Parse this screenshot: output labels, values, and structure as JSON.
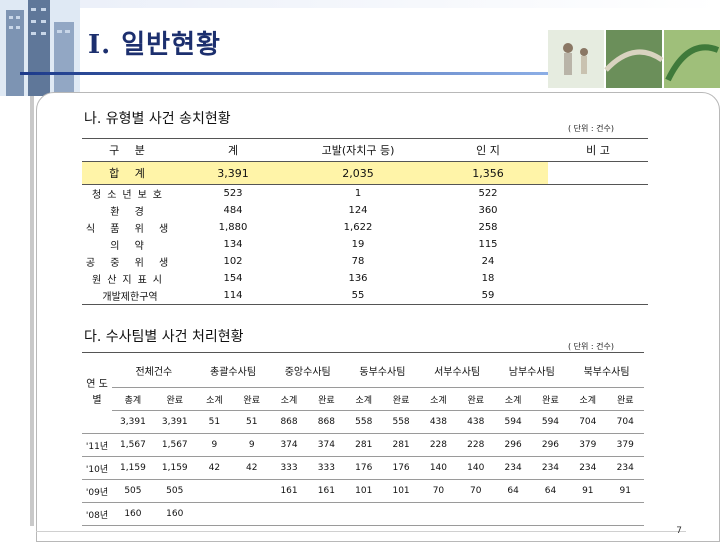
{
  "header": {
    "title": "I. 일반현황"
  },
  "section1": {
    "title": "나. 유형별 사건 송치현황",
    "unit": "( 단위 : 건수)",
    "columns": [
      "구 분",
      "계",
      "고발(자치구 등)",
      "인 지",
      "비 고"
    ],
    "total": {
      "label": "합 계",
      "total": "3,391",
      "complaint": "2,035",
      "cognizance": "1,356",
      "note": ""
    },
    "rows": [
      {
        "label": "청소년보호",
        "total": "523",
        "complaint": "1",
        "cognizance": "522",
        "note": ""
      },
      {
        "label": "환 경",
        "total": "484",
        "complaint": "124",
        "cognizance": "360",
        "note": ""
      },
      {
        "label": "식 품 위 생",
        "total": "1,880",
        "complaint": "1,622",
        "cognizance": "258",
        "note": ""
      },
      {
        "label": "의 약",
        "total": "134",
        "complaint": "19",
        "cognizance": "115",
        "note": ""
      },
      {
        "label": "공 중 위 생",
        "total": "102",
        "complaint": "78",
        "cognizance": "24",
        "note": ""
      },
      {
        "label": "원산지표시",
        "total": "154",
        "complaint": "136",
        "cognizance": "18",
        "note": ""
      },
      {
        "label": "개발제한구역",
        "total": "114",
        "complaint": "55",
        "cognizance": "59",
        "note": ""
      }
    ]
  },
  "section2": {
    "title": "다. 수사팀별 사건 처리현황",
    "unit": "( 단위 : 건수)",
    "year_col": "연 도 별",
    "groups": [
      "전체건수",
      "총괄수사팀",
      "중앙수사팀",
      "동부수사팀",
      "서부수사팀",
      "남부수사팀",
      "북부수사팀"
    ],
    "sub": [
      "총계",
      "완료",
      "소계",
      "완료",
      "소계",
      "완료",
      "소계",
      "완료",
      "소계",
      "완료",
      "소계",
      "완료",
      "소계",
      "완료"
    ],
    "rows": [
      {
        "year": "",
        "cells": [
          "3,391",
          "3,391",
          "51",
          "51",
          "868",
          "868",
          "558",
          "558",
          "438",
          "438",
          "594",
          "594",
          "704",
          "704"
        ]
      },
      {
        "year": "'11년",
        "cells": [
          "1,567",
          "1,567",
          "9",
          "9",
          "374",
          "374",
          "281",
          "281",
          "228",
          "228",
          "296",
          "296",
          "379",
          "379"
        ]
      },
      {
        "year": "'10년",
        "cells": [
          "1,159",
          "1,159",
          "42",
          "42",
          "333",
          "333",
          "176",
          "176",
          "140",
          "140",
          "234",
          "234",
          "234",
          "234"
        ]
      },
      {
        "year": "'09년",
        "cells": [
          "505",
          "505",
          "",
          "",
          "161",
          "161",
          "101",
          "101",
          "70",
          "70",
          "64",
          "64",
          "91",
          "91"
        ]
      },
      {
        "year": "'08년",
        "cells": [
          "160",
          "160",
          "",
          "",
          "",
          "",
          "",
          "",
          "",
          "",
          "",
          "",
          "",
          ""
        ]
      }
    ]
  },
  "footer": {
    "page": "7"
  }
}
